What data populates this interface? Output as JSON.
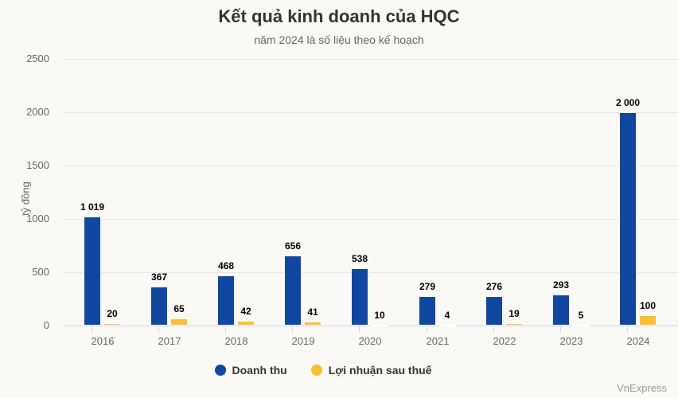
{
  "header": {
    "title": "Kết quả kinh doanh của HQC",
    "subtitle": "năm 2024 là số liệu theo kế hoạch"
  },
  "credit": "VnExpress",
  "legend": {
    "items": [
      {
        "label": "Doanh thu",
        "color": "#0f47a1"
      },
      {
        "label": "Lợi nhuận sau thuế",
        "color": "#fbc02d"
      }
    ]
  },
  "axes": {
    "ylabel": "tỷ đồng",
    "yticks": [
      "0",
      "500",
      "1000",
      "1500",
      "2000",
      "2500"
    ]
  },
  "chart_data": {
    "type": "bar",
    "title": "Kết quả kinh doanh của HQC",
    "subtitle": "năm 2024 là số liệu theo kế hoạch",
    "xlabel": "",
    "ylabel": "tỷ đồng",
    "ylim": [
      0,
      2500
    ],
    "yticks": [
      0,
      500,
      1000,
      1500,
      2000,
      2500
    ],
    "grid": true,
    "legend_position": "bottom",
    "categories": [
      "2016",
      "2017",
      "2018",
      "2019",
      "2020",
      "2021",
      "2022",
      "2023",
      "2024"
    ],
    "series": [
      {
        "name": "Doanh thu",
        "color": "#0f47a1",
        "values": [
          1019,
          367,
          468,
          656,
          538,
          279,
          276,
          293,
          2000
        ],
        "labels": [
          "1 019",
          "367",
          "468",
          "656",
          "538",
          "279",
          "276",
          "293",
          "2 000"
        ]
      },
      {
        "name": "Lợi nhuận sau thuế",
        "color": "#fbc02d",
        "values": [
          20,
          65,
          42,
          41,
          10,
          4,
          19,
          5,
          100
        ],
        "labels": [
          "20",
          "65",
          "42",
          "41",
          "10",
          "4",
          "19",
          "5",
          "100"
        ]
      }
    ]
  }
}
